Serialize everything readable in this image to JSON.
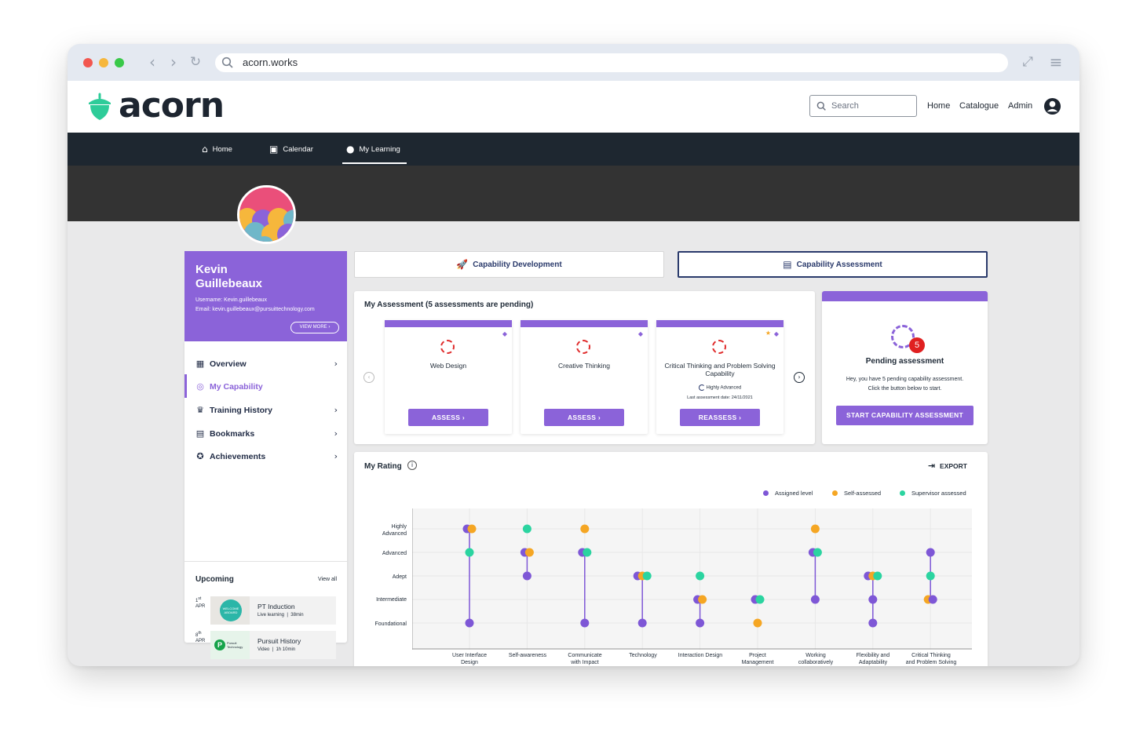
{
  "browser": {
    "url": "acorn.works"
  },
  "brand": {
    "name": "acorn",
    "accent": "#8b63d9",
    "logo_color": "#2ecc99"
  },
  "header": {
    "search_placeholder": "Search",
    "links": [
      "Home",
      "Catalogue",
      "Admin"
    ]
  },
  "nav": {
    "items": [
      "Home",
      "Calendar",
      "My Learning"
    ],
    "active": "My Learning"
  },
  "profile": {
    "first_name": "Kevin",
    "last_name": "Guillebeaux",
    "username": "Username: Kevin.guillebeaux",
    "email": "Email: kevin.guillebeaux@pursuittechnology.com",
    "view_more": "VIEW MORE"
  },
  "sidebar": {
    "items": [
      {
        "label": "Overview",
        "icon": "grid-icon"
      },
      {
        "label": "My Capability",
        "icon": "target-icon"
      },
      {
        "label": "Training History",
        "icon": "trophy-icon"
      },
      {
        "label": "Bookmarks",
        "icon": "bookmarks-icon"
      },
      {
        "label": "Achievements",
        "icon": "star-badge-icon"
      }
    ],
    "active": "My Capability"
  },
  "upcoming": {
    "title": "Upcoming",
    "view_all": "View all",
    "events": [
      {
        "day": "1",
        "suffix": "st",
        "month": "APR",
        "title": "PT Induction",
        "sub": "Live learning  |  38min",
        "thumb_text": "WELCOME ABOARD"
      },
      {
        "day": "8",
        "suffix": "th",
        "month": "APR",
        "title": "Pursuit History",
        "sub": "Video  |  1h 10min",
        "thumb_text": "Pursuit Technology"
      }
    ]
  },
  "tabs": {
    "development": "Capability Development",
    "assessment": "Capability Assessment"
  },
  "assessment": {
    "title": "My Assessment (5 assessments are pending)",
    "cards": [
      {
        "title": "Web Design",
        "button": "ASSESS"
      },
      {
        "title": "Creative Thinking",
        "button": "ASSESS"
      },
      {
        "title": "Critical Thinking and Problem Solving Capability",
        "button": "REASSESS",
        "level": "Highly Advanced",
        "last_date": "Last assessment date: 24/11/2021"
      }
    ]
  },
  "pending": {
    "count": "5",
    "title": "Pending assessment",
    "text1": "Hey, you have 5 pending capability assessment.",
    "text2": "Click the button below to start.",
    "button": "START CAPABILITY ASSESSMENT"
  },
  "rating": {
    "title": "My Rating",
    "export": "EXPORT"
  },
  "chart_data": {
    "type": "scatter",
    "title": "My Rating",
    "levels": [
      "Foundational",
      "Intermediate",
      "Adept",
      "Advanced",
      "Highly Advanced"
    ],
    "categories": [
      "User Interface Design",
      "Self-awareness",
      "Communicate with Impact",
      "Technology",
      "Interaction Design",
      "Project Management",
      "Working collaboratively",
      "Flexibility and Adaptability",
      "Critical Thinking and Problem Solving"
    ],
    "series": [
      {
        "name": "Assigned level",
        "color": "#7e57d6",
        "values": [
          5,
          4,
          4,
          3,
          2,
          2,
          4,
          3,
          4
        ]
      },
      {
        "name": "Self-assessed",
        "color": "#f5a623",
        "values": [
          5,
          4,
          5,
          3,
          2,
          1,
          5,
          3,
          2
        ]
      },
      {
        "name": "Supervisor assessed",
        "color": "#2bd4a0",
        "values": [
          4,
          5,
          4,
          3,
          3,
          2,
          4,
          3,
          3
        ]
      }
    ],
    "extra_points": [
      {
        "category": "User Interface Design",
        "series": "Assigned level",
        "value": 1
      },
      {
        "category": "Self-awareness",
        "series": "Assigned level",
        "value": 3
      },
      {
        "category": "Communicate with Impact",
        "series": "Assigned level",
        "value": 1
      },
      {
        "category": "Technology",
        "series": "Assigned level",
        "value": 1
      },
      {
        "category": "Interaction Design",
        "series": "Assigned level",
        "value": 1
      },
      {
        "category": "Working collaboratively",
        "series": "Assigned level",
        "value": 2
      },
      {
        "category": "Flexibility and Adaptability",
        "series": "Assigned level",
        "value": 1
      },
      {
        "category": "Critical Thinking and Problem Solving",
        "series": "Assigned level",
        "value": 2
      },
      {
        "category": "Flexibility and Adaptability",
        "series": "Assigned level",
        "value": 2
      }
    ],
    "x_tick_labels": [
      "User Interface\nDesign",
      "Self-awareness",
      "Communicate\nwith Impact",
      "Technology",
      "Interaction Design",
      "Project\nManagement",
      "Working\ncollaboratively",
      "Flexibility and\nAdaptability",
      "Critical Thinking\nand Problem Solving"
    ],
    "y_tick_labels": [
      "Foundational",
      "Intermediate",
      "Adept",
      "Advanced",
      "Highly\nAdvanced"
    ],
    "legend": "top-right",
    "grid": true
  }
}
